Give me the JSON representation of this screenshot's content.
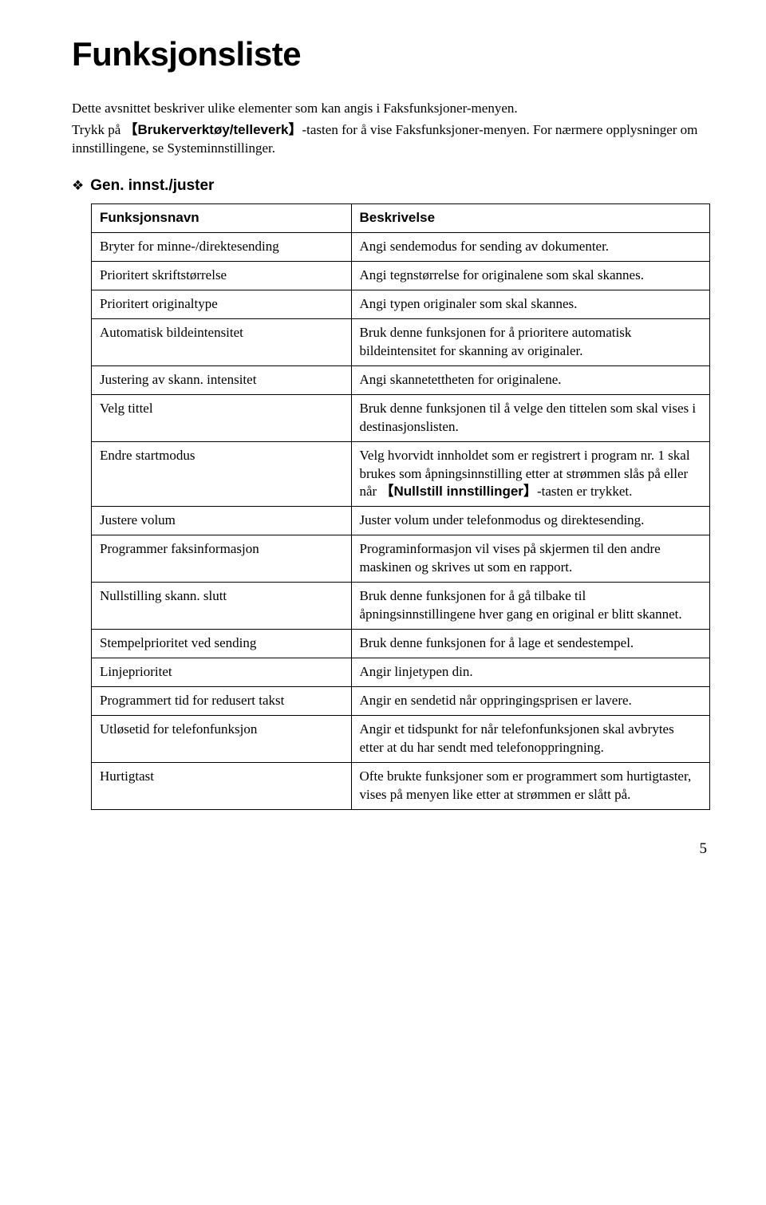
{
  "page": {
    "title": "Funksjonsliste",
    "intro_line1_pre": "Dette avsnittet beskriver ulike elementer som kan angis i Faksfunksjoner-menyen.",
    "intro_line2_pre": "Trykk på ",
    "intro_line2_key": "Brukerverktøy/telleverk",
    "intro_line2_post": "-tasten for å vise Faksfunksjoner-menyen. For nærmere opplysninger om innstillingene, se Systeminnstillinger.",
    "page_number": "5"
  },
  "section": {
    "icon": "❖",
    "title": "Gen. innst./juster"
  },
  "table": {
    "header_name": "Funksjonsnavn",
    "header_desc": "Beskrivelse",
    "rows": [
      {
        "name": "Bryter for minne-/direktesending",
        "desc": "Angi sendemodus for sending av dokumenter."
      },
      {
        "name": "Prioritert skriftstørrelse",
        "desc": "Angi tegnstørrelse for originalene som skal skannes."
      },
      {
        "name": "Prioritert originaltype",
        "desc": "Angi typen originaler som skal skannes."
      },
      {
        "name": "Automatisk bildeintensitet",
        "desc": "Bruk denne funksjonen for å prioritere automatisk bildeintensitet for skanning av originaler."
      },
      {
        "name": "Justering av skann. intensitet",
        "desc": "Angi skannetettheten for originalene."
      },
      {
        "name": "Velg tittel",
        "desc": "Bruk denne funksjonen til å velge den tittelen som skal vises i destinasjonslisten."
      },
      {
        "name": "Endre startmodus",
        "desc_pre": "Velg hvorvidt innholdet som er registrert i program nr. 1 skal brukes som åpningsinnstilling etter at strømmen slås på eller når ",
        "desc_key": "Nullstill innstillinger",
        "desc_post": "-tasten er trykket."
      },
      {
        "name": "Justere volum",
        "desc": "Juster volum under telefonmodus og direktesending."
      },
      {
        "name": "Programmer faksinformasjon",
        "desc": "Programinformasjon vil vises på skjermen til den andre maskinen og skrives ut som en rapport."
      },
      {
        "name": "Nullstilling skann. slutt",
        "desc": "Bruk denne funksjonen for å gå tilbake til åpningsinnstillingene hver gang en original er blitt skannet."
      },
      {
        "name": "Stempelprioritet ved sending",
        "desc": "Bruk denne funksjonen for å lage et sendestempel."
      },
      {
        "name": "Linjeprioritet",
        "desc": "Angir linjetypen din."
      },
      {
        "name": "Programmert tid for redusert takst",
        "desc": "Angir en sendetid når oppringingsprisen er lavere."
      },
      {
        "name": "Utløsetid for telefonfunksjon",
        "desc": "Angir et tidspunkt for når telefonfunksjonen skal avbrytes etter at du har sendt med telefonoppringning."
      },
      {
        "name": "Hurtigtast",
        "desc": "Ofte brukte funksjoner som er programmert som hurtigtaster, vises på menyen like etter at strømmen er slått på."
      }
    ]
  }
}
